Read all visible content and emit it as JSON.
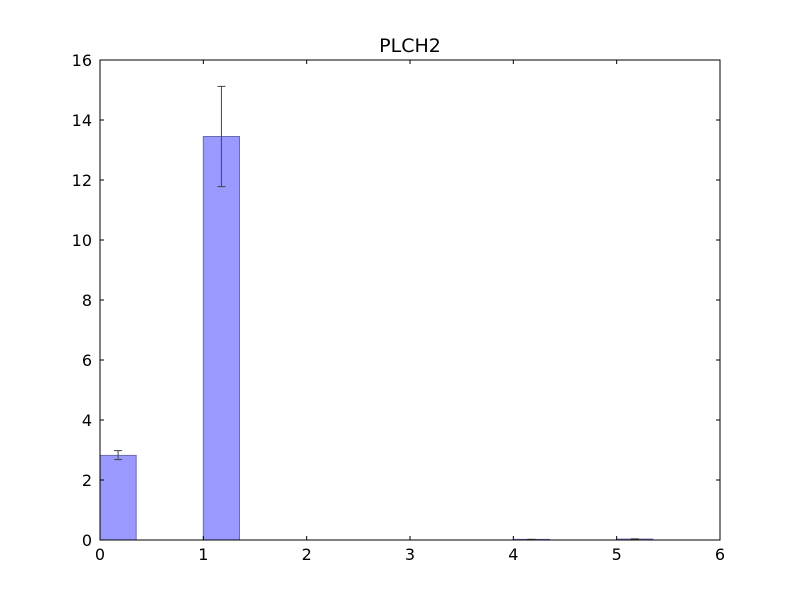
{
  "chart_data": {
    "type": "bar",
    "title": "PLCH2",
    "xlabel": "",
    "ylabel": "",
    "xlim": [
      0,
      6
    ],
    "ylim": [
      0,
      16
    ],
    "x_ticks": [
      0,
      1,
      2,
      3,
      4,
      5,
      6
    ],
    "y_ticks": [
      0,
      2,
      4,
      6,
      8,
      10,
      12,
      14,
      16
    ],
    "bar_width": 0.35,
    "bars": [
      {
        "x": 0,
        "value": 2.82,
        "err_low": 2.68,
        "err_high": 2.98
      },
      {
        "x": 1,
        "value": 13.45,
        "err_low": 11.78,
        "err_high": 15.12
      },
      {
        "x": 2,
        "value": 0.0,
        "err_low": 0.0,
        "err_high": 0.0
      },
      {
        "x": 3,
        "value": 0.0,
        "err_low": 0.0,
        "err_high": 0.0
      },
      {
        "x": 4,
        "value": 0.02,
        "err_low": 0.02,
        "err_high": 0.02
      },
      {
        "x": 5,
        "value": 0.03,
        "err_low": 0.02,
        "err_high": 0.04
      }
    ],
    "grid": false,
    "colors": {
      "bar_fill": "#9999ff",
      "bar_edge": "#6b6bb3",
      "error_bar": "#444444",
      "axis": "#000000"
    }
  }
}
